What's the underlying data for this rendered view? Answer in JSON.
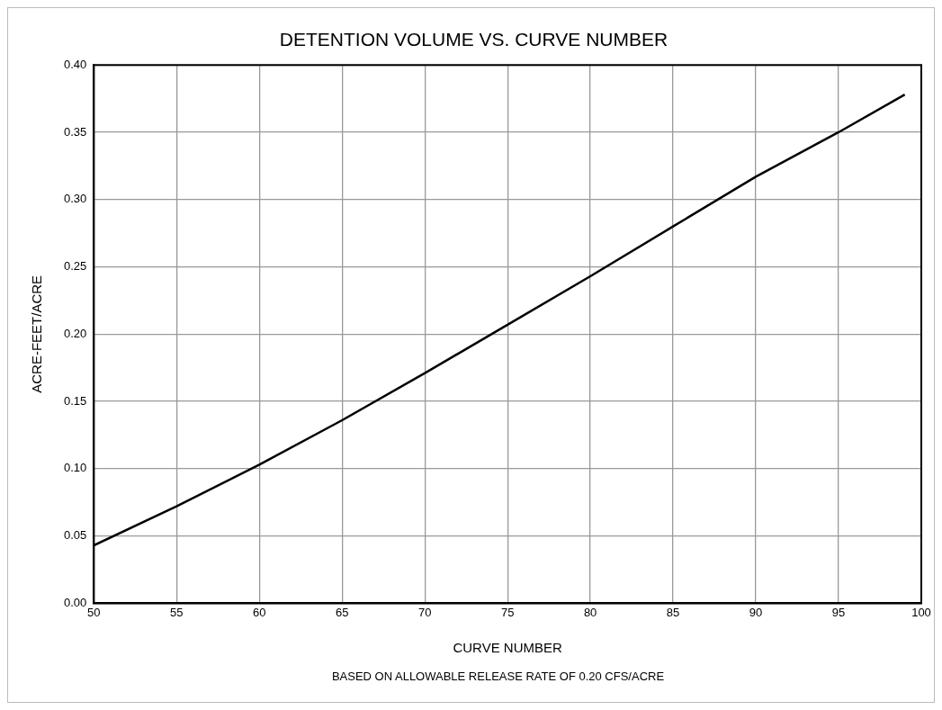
{
  "chart_data": {
    "type": "line",
    "title": "DETENTION VOLUME VS. CURVE NUMBER",
    "xlabel": "CURVE NUMBER",
    "ylabel": "ACRE-FEET/ACRE",
    "annotations": [
      "BASED ON ALLOWABLE RELEASE RATE OF 0.20 CFS/ACRE"
    ],
    "x": [
      50,
      55,
      60,
      65,
      70,
      75,
      80,
      85,
      90,
      95,
      99
    ],
    "series": [
      {
        "color": "#000000",
        "values": [
          0.043,
          0.072,
          0.103,
          0.136,
          0.171,
          0.207,
          0.243,
          0.28,
          0.317,
          0.35,
          0.378
        ]
      }
    ],
    "xlim": [
      50,
      100
    ],
    "xticks": [
      50,
      55,
      60,
      65,
      70,
      75,
      80,
      85,
      90,
      95,
      100
    ],
    "ylim": [
      0,
      0.4
    ],
    "yticks": [
      {
        "value": 0,
        "label": "0.00"
      },
      {
        "value": 0.05,
        "label": "0.05"
      },
      {
        "value": 0.1,
        "label": "0.10"
      },
      {
        "value": 0.15,
        "label": "0.15"
      },
      {
        "value": 0.2,
        "label": "0.20"
      },
      {
        "value": 0.25,
        "label": "0.25"
      },
      {
        "value": 0.3,
        "label": "0.30"
      },
      {
        "value": 0.35,
        "label": "0.35"
      },
      {
        "value": 0.4,
        "label": "0.40"
      }
    ],
    "grid": true,
    "legend": false,
    "marker": "none",
    "line_style": "solid"
  }
}
